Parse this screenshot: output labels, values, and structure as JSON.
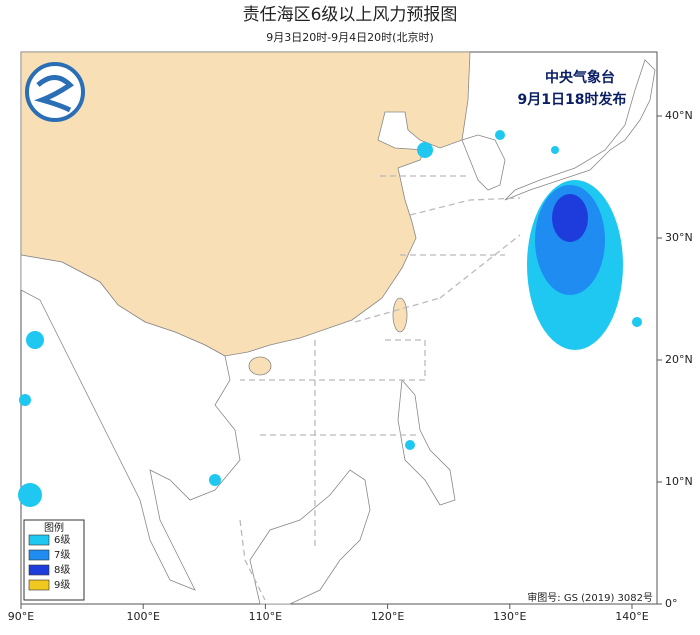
{
  "header": {
    "title": "责任海区6级以上风力预报图",
    "subtitle": "9月3日20时-9月4日20时(北京时)"
  },
  "publisher": {
    "agency": "中央气象台",
    "issued": "9月1日18时发布"
  },
  "legend": {
    "title": "图例",
    "items": [
      {
        "label": "6级",
        "color": "#1ec8f0"
      },
      {
        "label": "7级",
        "color": "#1e8cf0"
      },
      {
        "label": "8级",
        "color": "#1e3cdc"
      },
      {
        "label": "9级",
        "color": "#f0c81e"
      }
    ]
  },
  "review_number": "审图号: GS (2019) 3082号",
  "lon_labels": [
    "90°E",
    "100°E",
    "110°E",
    "120°E",
    "130°E",
    "140°E"
  ],
  "lat_labels": [
    "40°N",
    "30°N",
    "20°N",
    "10°N",
    "0°"
  ]
}
